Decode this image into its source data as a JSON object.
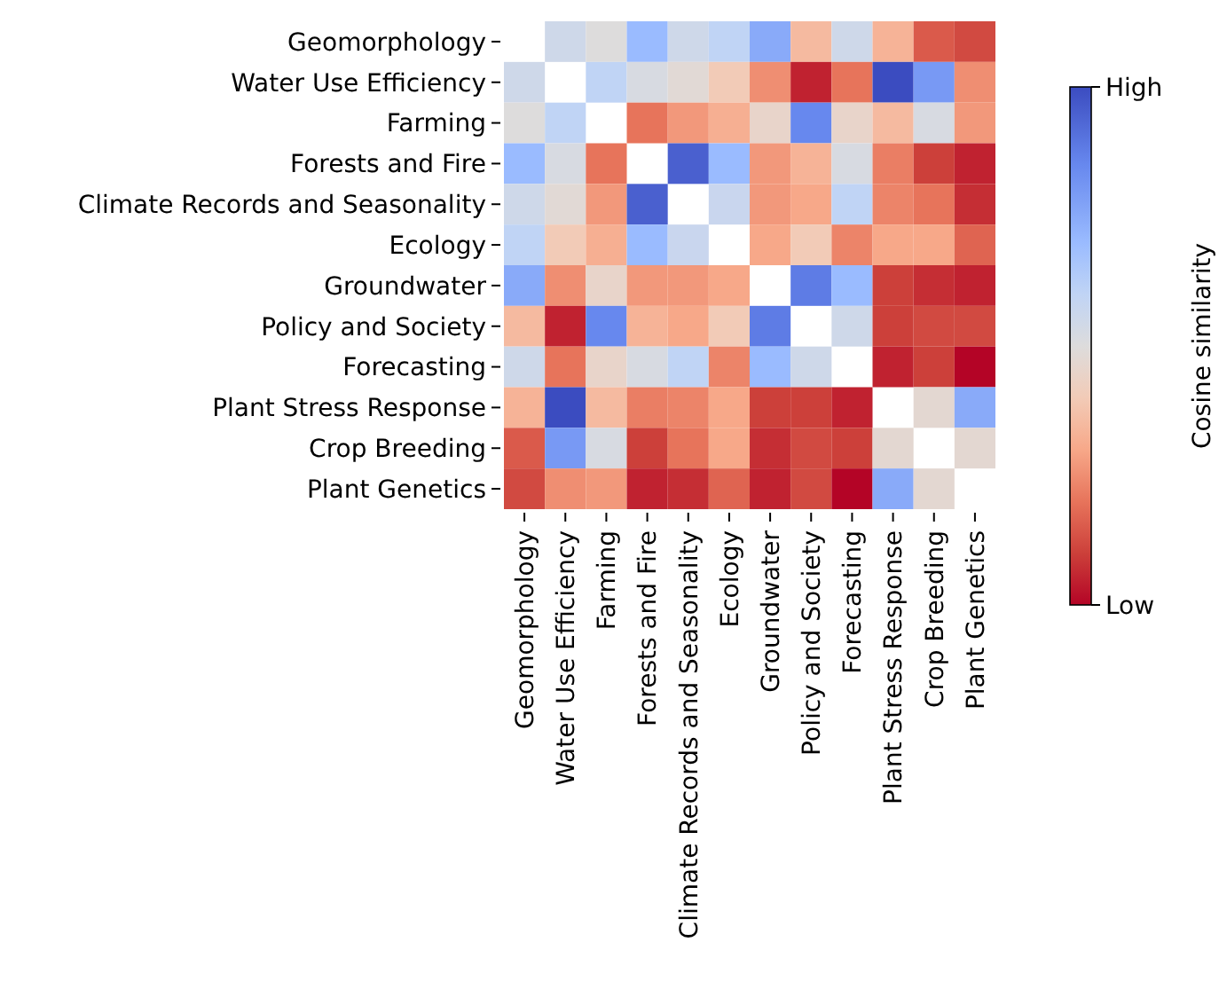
{
  "chart_data": {
    "type": "heatmap",
    "categories": [
      "Geomorphology",
      "Water Use Efficiency",
      "Farming",
      "Forests and Fire",
      "Climate Records and Seasonality",
      "Ecology",
      "Groundwater",
      "Policy and Society",
      "Forecasting",
      "Plant Stress Response",
      "Crop Breeding",
      "Plant Genetics"
    ],
    "y_categories": [
      "Geomorphology",
      "Water Use Efficiency",
      "Farming",
      "Forests and Fire",
      "Climate Records and Seasonality",
      "Ecology",
      "Groundwater",
      "Policy and Society",
      "Forecasting",
      "Plant Stress Response",
      "Crop Breeding",
      "Plant Genetics"
    ],
    "cells": [
      [
        null,
        0.55,
        0.5,
        0.7,
        0.55,
        0.6,
        0.75,
        0.35,
        0.55,
        0.33,
        0.15,
        0.12
      ],
      [
        0.55,
        null,
        0.6,
        0.52,
        0.48,
        0.4,
        0.25,
        0.05,
        0.2,
        1.0,
        0.8,
        0.25
      ],
      [
        0.5,
        0.6,
        null,
        0.2,
        0.27,
        0.32,
        0.45,
        0.85,
        0.45,
        0.35,
        0.52,
        0.27
      ],
      [
        0.7,
        0.52,
        0.2,
        null,
        0.95,
        0.7,
        0.27,
        0.33,
        0.52,
        0.22,
        0.1,
        0.05
      ],
      [
        0.55,
        0.48,
        0.27,
        0.95,
        null,
        0.57,
        0.27,
        0.3,
        0.6,
        0.23,
        0.2,
        0.07
      ],
      [
        0.6,
        0.4,
        0.32,
        0.7,
        0.57,
        null,
        0.3,
        0.4,
        0.23,
        0.3,
        0.3,
        0.17
      ],
      [
        0.75,
        0.25,
        0.45,
        0.27,
        0.27,
        0.3,
        null,
        0.88,
        0.7,
        0.1,
        0.07,
        0.05
      ],
      [
        0.35,
        0.05,
        0.85,
        0.33,
        0.3,
        0.4,
        0.88,
        null,
        0.55,
        0.1,
        0.12,
        0.12
      ],
      [
        0.55,
        0.2,
        0.45,
        0.52,
        0.6,
        0.23,
        0.7,
        0.55,
        null,
        0.05,
        0.1,
        0.0
      ],
      [
        0.33,
        1.0,
        0.35,
        0.22,
        0.23,
        0.3,
        0.1,
        0.1,
        0.05,
        null,
        0.47,
        0.75
      ],
      [
        0.15,
        0.8,
        0.52,
        0.1,
        0.2,
        0.3,
        0.07,
        0.12,
        0.1,
        0.47,
        null,
        0.47
      ],
      [
        0.12,
        0.25,
        0.27,
        0.05,
        0.07,
        0.17,
        0.05,
        0.12,
        0.0,
        0.75,
        0.47,
        null
      ]
    ],
    "clim": [
      0,
      1
    ],
    "cticks": [
      {
        "value": 0,
        "label": "Low"
      },
      {
        "value": 1,
        "label": "High"
      }
    ],
    "clabel": "Cosine similarity"
  }
}
